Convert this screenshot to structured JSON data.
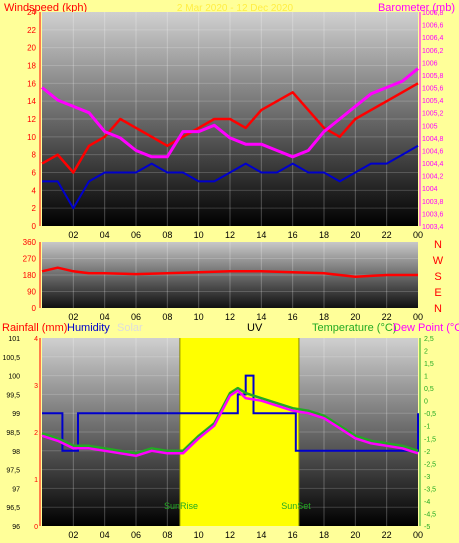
{
  "colors": {
    "background": "#ffff99",
    "windspeed": "#ff0000",
    "gust_avg": "#0000cc",
    "barometer": "#ff00ff",
    "temperature": "#22aa22",
    "dew_point": "#ff00ff",
    "humidity": "#0000cc",
    "solar": "#ffff00",
    "uv": "#000000",
    "axis_right_top": "#ff00ff",
    "axis_right_bottom": "#22aa22",
    "axis_left": "#ff0000"
  },
  "top_panel": {
    "title_left": "Windspeed (kph)",
    "title_center": "2 Mar 2020 - 12 Dec 2020",
    "title_right": "Barometer (mb)"
  },
  "direction_letters": [
    "N",
    "W",
    "S",
    "E",
    "N"
  ],
  "bottom_panel": {
    "legend_rainfall": "Rainfall (mm)",
    "legend_humidity": "Humidity",
    "legend_solar": "Solar",
    "legend_uv": "UV",
    "legend_temperature": "Temperature (°C)",
    "legend_dewpoint": "Dew Point (°C)",
    "sunrise_label": "SunRise",
    "sunset_label": "SunSet"
  },
  "chart_data": [
    {
      "type": "line",
      "name": "wind-barometer",
      "x_ticks": [
        "02",
        "04",
        "06",
        "08",
        "10",
        "12",
        "14",
        "16",
        "18",
        "20",
        "22",
        "00"
      ],
      "y_left_ticks": [
        "0",
        "2",
        "4",
        "6",
        "8",
        "10",
        "12",
        "14",
        "16",
        "18",
        "20",
        "22",
        "24"
      ],
      "y_right_ticks": [
        "1003,4",
        "1003,6",
        "1003,8",
        "1004",
        "1004,2",
        "1004,4",
        "1004,6",
        "1004,8",
        "1005",
        "1005,2",
        "1005,4",
        "1005,6",
        "1005,8",
        "1006",
        "1006,2",
        "1006,4",
        "1006,6",
        "1006,8"
      ],
      "ylim_left": [
        0,
        24
      ],
      "ylim_right": [
        1003.4,
        1006.8
      ],
      "xlim": [
        0,
        24
      ],
      "series": [
        {
          "name": "Windspeed (kph)",
          "axis": "left",
          "x": [
            0,
            1,
            2,
            3,
            4,
            5,
            6,
            7,
            8,
            9,
            10,
            11,
            12,
            13,
            14,
            15,
            16,
            17,
            18,
            19,
            20,
            21,
            22,
            23,
            24
          ],
          "values": [
            7,
            8,
            6,
            9,
            10,
            12,
            11,
            10,
            9,
            10,
            11,
            12,
            12,
            11,
            13,
            14,
            15,
            13,
            11,
            10,
            12,
            13,
            14,
            15,
            16
          ]
        },
        {
          "name": "Gust average",
          "axis": "left",
          "x": [
            0,
            1,
            2,
            3,
            4,
            5,
            6,
            7,
            8,
            9,
            10,
            11,
            12,
            13,
            14,
            15,
            16,
            17,
            18,
            19,
            20,
            21,
            22,
            23,
            24
          ],
          "values": [
            5,
            5,
            2,
            5,
            6,
            6,
            6,
            7,
            6,
            6,
            5,
            5,
            6,
            7,
            6,
            6,
            7,
            6,
            6,
            5,
            6,
            7,
            7,
            8,
            9
          ]
        },
        {
          "name": "Barometer (mb)",
          "axis": "right",
          "x": [
            0,
            1,
            2,
            3,
            4,
            5,
            6,
            7,
            8,
            9,
            10,
            11,
            12,
            13,
            14,
            15,
            16,
            17,
            18,
            19,
            20,
            21,
            22,
            23,
            24
          ],
          "values": [
            1005.6,
            1005.4,
            1005.3,
            1005.2,
            1004.9,
            1004.8,
            1004.6,
            1004.5,
            1004.5,
            1004.9,
            1004.9,
            1005.0,
            1004.8,
            1004.7,
            1004.7,
            1004.6,
            1004.5,
            1004.6,
            1004.9,
            1005.1,
            1005.3,
            1005.5,
            1005.6,
            1005.7,
            1005.9
          ]
        }
      ]
    },
    {
      "type": "line",
      "name": "wind-direction",
      "x_ticks": [
        "02",
        "04",
        "06",
        "08",
        "10",
        "12",
        "14",
        "16",
        "18",
        "20",
        "22",
        "00"
      ],
      "y_ticks": [
        "0",
        "90",
        "180",
        "270",
        "360"
      ],
      "ylim": [
        0,
        360
      ],
      "series": [
        {
          "name": "Wind direction",
          "x": [
            0,
            1,
            2,
            3,
            4,
            6,
            8,
            10,
            12,
            14,
            16,
            18,
            20,
            22,
            24
          ],
          "values": [
            200,
            220,
            200,
            190,
            190,
            185,
            190,
            195,
            200,
            200,
            195,
            190,
            170,
            180,
            180
          ]
        }
      ]
    },
    {
      "type": "line",
      "name": "temperature-humidity",
      "x_ticks": [
        "02",
        "04",
        "06",
        "08",
        "10",
        "12",
        "14",
        "16",
        "18",
        "20",
        "22",
        "00"
      ],
      "y_left_ticks": [
        "96",
        "96,5",
        "97",
        "97,5",
        "98",
        "98,5",
        "99",
        "99,5",
        "100",
        "100,5",
        "101"
      ],
      "y_right_ticks": [
        "-5",
        "-4,5",
        "-4",
        "-3,5",
        "-3",
        "-2,5",
        "-2",
        "-1,5",
        "-1",
        "-0,5",
        "0",
        "0,5",
        "1",
        "1,5",
        "2",
        "2,5"
      ],
      "ylim_left": [
        96,
        101
      ],
      "ylim_right": [
        -5,
        2.5
      ],
      "series": [
        {
          "name": "Humidity",
          "axis": "left",
          "x": [
            0,
            1,
            1.3,
            2,
            2.3,
            12,
            12.5,
            13,
            13.5,
            14,
            16,
            16.2,
            24
          ],
          "values": [
            99,
            99,
            98,
            98,
            99,
            99,
            99.5,
            100,
            99,
            99,
            99,
            98,
            99
          ]
        },
        {
          "name": "Temperature",
          "axis": "right",
          "x": [
            0,
            1,
            2,
            3,
            4,
            5,
            6,
            7,
            8,
            9,
            10,
            11,
            12,
            12.5,
            13,
            14,
            15,
            16,
            17,
            18,
            19,
            20,
            21,
            22,
            23,
            24
          ],
          "values": [
            -1.3,
            -1.5,
            -1.8,
            -1.8,
            -1.9,
            -2.0,
            -2.1,
            -1.9,
            -2.0,
            -2.0,
            -1.4,
            -0.9,
            0.3,
            0.5,
            0.3,
            0.1,
            -0.1,
            -0.3,
            -0.4,
            -0.6,
            -1.0,
            -1.4,
            -1.6,
            -1.7,
            -1.8,
            -2.0
          ]
        },
        {
          "name": "Dew Point",
          "axis": "right",
          "x": [
            0,
            1,
            2,
            3,
            4,
            5,
            6,
            7,
            8,
            9,
            10,
            11,
            12,
            12.5,
            13,
            14,
            15,
            16,
            17,
            18,
            19,
            20,
            21,
            22,
            23,
            24
          ],
          "values": [
            -1.4,
            -1.6,
            -1.9,
            -1.9,
            -2.0,
            -2.1,
            -2.2,
            -2.0,
            -2.1,
            -2.1,
            -1.5,
            -1.0,
            0.2,
            0.4,
            0.1,
            0.0,
            -0.2,
            -0.4,
            -0.5,
            -0.7,
            -1.1,
            -1.5,
            -1.7,
            -1.8,
            -1.9,
            -2.1
          ]
        }
      ]
    }
  ]
}
